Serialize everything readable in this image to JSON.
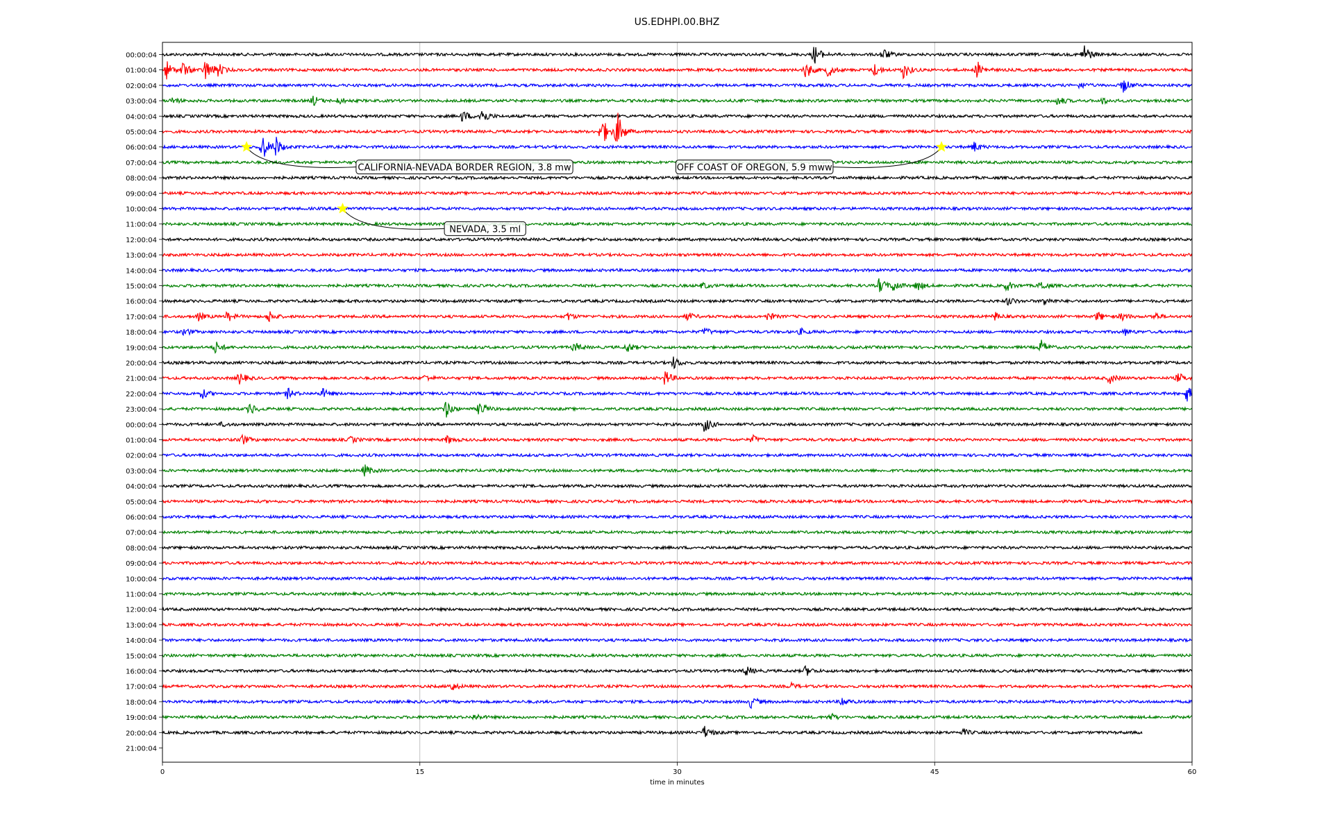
{
  "chart_data": {
    "type": "line",
    "title": "US.EDHPI.00.BHZ",
    "xlabel": "time in minutes",
    "ylabel": "",
    "xlim": [
      0,
      60
    ],
    "xticks": [
      0,
      15,
      30,
      45,
      60
    ],
    "xtick_labels": [
      "0",
      "15",
      "30",
      "45",
      "60"
    ],
    "grid": "vertical lines at x ticks",
    "row_labels": [
      "00:00:04",
      "01:00:04",
      "02:00:04",
      "03:00:04",
      "04:00:04",
      "05:00:04",
      "06:00:04",
      "07:00:04",
      "08:00:04",
      "09:00:04",
      "10:00:04",
      "11:00:04",
      "12:00:04",
      "13:00:04",
      "14:00:04",
      "15:00:04",
      "16:00:04",
      "17:00:04",
      "18:00:04",
      "19:00:04",
      "20:00:04",
      "21:00:04",
      "22:00:04",
      "23:00:04",
      "00:00:04",
      "01:00:04",
      "02:00:04",
      "03:00:04",
      "04:00:04",
      "05:00:04",
      "06:00:04",
      "07:00:04",
      "08:00:04",
      "09:00:04",
      "10:00:04",
      "11:00:04",
      "12:00:04",
      "13:00:04",
      "14:00:04",
      "15:00:04",
      "16:00:04",
      "17:00:04",
      "18:00:04",
      "19:00:04",
      "20:00:04",
      "21:00:04"
    ],
    "trace_colors": [
      "#000000",
      "#ff0000",
      "#0000ff",
      "#008000"
    ],
    "traces": [
      {
        "bursts": [
          [
            38,
            1.0
          ],
          [
            42,
            0.6
          ],
          [
            53.7,
            1.1
          ]
        ]
      },
      {
        "bursts": [
          [
            0.2,
            1.0
          ],
          [
            1.2,
            0.8
          ],
          [
            2.5,
            1.1
          ],
          [
            3.2,
            0.7
          ],
          [
            37.5,
            0.9
          ],
          [
            38.8,
            0.7
          ],
          [
            41.5,
            0.6
          ],
          [
            43.2,
            0.9
          ],
          [
            47.5,
            0.9
          ]
        ]
      },
      {
        "bursts": [
          [
            53.5,
            0.3
          ],
          [
            56,
            0.7
          ]
        ]
      },
      {
        "bursts": [
          [
            0.6,
            0.3
          ],
          [
            8.8,
            0.5
          ],
          [
            10.3,
            0.3
          ],
          [
            52.2,
            0.5
          ],
          [
            54.8,
            0.3
          ]
        ]
      },
      {
        "bursts": [
          [
            17.5,
            0.6
          ],
          [
            18.6,
            0.9
          ]
        ]
      },
      {
        "bursts": [
          [
            25.6,
            1.6
          ],
          [
            26.5,
            2.0
          ]
        ]
      },
      {
        "bursts": [
          [
            5.8,
            1.5
          ],
          [
            6.6,
            1.0
          ],
          [
            47.3,
            0.5
          ]
        ]
      },
      {
        "bursts": []
      },
      {
        "bursts": []
      },
      {
        "bursts": []
      },
      {
        "bursts": []
      },
      {
        "bursts": []
      },
      {
        "bursts": []
      },
      {
        "bursts": []
      },
      {
        "bursts": []
      },
      {
        "bursts": [
          [
            31.5,
            0.3
          ],
          [
            41.8,
            0.8
          ],
          [
            42.6,
            0.6
          ],
          [
            44,
            0.5
          ],
          [
            49.2,
            0.5
          ],
          [
            51.2,
            0.5
          ]
        ]
      },
      {
        "bursts": [
          [
            49.3,
            0.4
          ],
          [
            51.4,
            0.4
          ]
        ]
      },
      {
        "bursts": [
          [
            2.1,
            0.4
          ],
          [
            3.8,
            0.5
          ],
          [
            6.2,
            0.6
          ],
          [
            23.6,
            0.4
          ],
          [
            30.6,
            0.4
          ],
          [
            35.3,
            0.4
          ],
          [
            48.5,
            0.4
          ],
          [
            54.5,
            0.5
          ],
          [
            55.9,
            0.4
          ],
          [
            57.8,
            0.4
          ]
        ]
      },
      {
        "bursts": [
          [
            1.3,
            0.4
          ],
          [
            31.6,
            0.4
          ],
          [
            37.2,
            0.3
          ],
          [
            56.1,
            0.3
          ]
        ]
      },
      {
        "bursts": [
          [
            3.1,
            0.6
          ],
          [
            24,
            0.5
          ],
          [
            27.1,
            0.5
          ],
          [
            51.2,
            0.7
          ]
        ]
      },
      {
        "bursts": [
          [
            29.8,
            0.6
          ]
        ]
      },
      {
        "bursts": [
          [
            4.5,
            0.6
          ],
          [
            15.3,
            0.3
          ],
          [
            29.3,
            0.8
          ],
          [
            55.2,
            0.5
          ],
          [
            59.2,
            0.5
          ]
        ]
      },
      {
        "bursts": [
          [
            2.3,
            0.5
          ],
          [
            7.3,
            0.5
          ],
          [
            9.3,
            0.5
          ],
          [
            59.7,
            0.8
          ]
        ]
      },
      {
        "bursts": [
          [
            5.1,
            0.6
          ],
          [
            16.5,
            0.9
          ],
          [
            18.5,
            0.8
          ]
        ]
      },
      {
        "bursts": [
          [
            3.5,
            0.2
          ],
          [
            31.6,
            0.8
          ]
        ]
      },
      {
        "bursts": [
          [
            4.6,
            0.6
          ],
          [
            11,
            0.3
          ],
          [
            16.6,
            0.4
          ],
          [
            34.4,
            0.4
          ]
        ]
      },
      {
        "bursts": []
      },
      {
        "bursts": [
          [
            11.8,
            0.6
          ]
        ]
      },
      {
        "bursts": []
      },
      {
        "bursts": []
      },
      {
        "bursts": []
      },
      {
        "bursts": []
      },
      {
        "bursts": []
      },
      {
        "bursts": []
      },
      {
        "bursts": []
      },
      {
        "bursts": []
      },
      {
        "bursts": []
      },
      {
        "bursts": []
      },
      {
        "bursts": []
      },
      {
        "bursts": []
      },
      {
        "bursts": [
          [
            34,
            0.5
          ],
          [
            37.5,
            0.5
          ]
        ]
      },
      {
        "bursts": [
          [
            16.8,
            0.5
          ],
          [
            36.6,
            0.3
          ]
        ]
      },
      {
        "bursts": [
          [
            34.3,
            0.6
          ],
          [
            39.6,
            0.5
          ]
        ]
      },
      {
        "bursts": [
          [
            18.2,
            0.3
          ],
          [
            38.9,
            0.4
          ]
        ]
      },
      {
        "bursts": [
          [
            31.6,
            0.6
          ],
          [
            46.7,
            0.3
          ]
        ],
        "end": 57.1
      },
      {
        "bursts": [],
        "end": 0
      }
    ],
    "annotations": [
      {
        "text": "CALIFORNIA-NEVADA BORDER REGION, 3.8 mw",
        "event_x": 4.9,
        "event_row": 6,
        "label_x": 17.6,
        "label_row": 7.3
      },
      {
        "text": "OFF COAST OF OREGON, 5.9 mww",
        "event_x": 45.4,
        "event_row": 6,
        "label_x": 34.5,
        "label_row": 7.3
      },
      {
        "text": "NEVADA, 3.5 ml",
        "event_x": 10.5,
        "event_row": 10,
        "label_x": 18.8,
        "label_row": 11.3
      }
    ],
    "event_marker_color": "#ffff00"
  }
}
